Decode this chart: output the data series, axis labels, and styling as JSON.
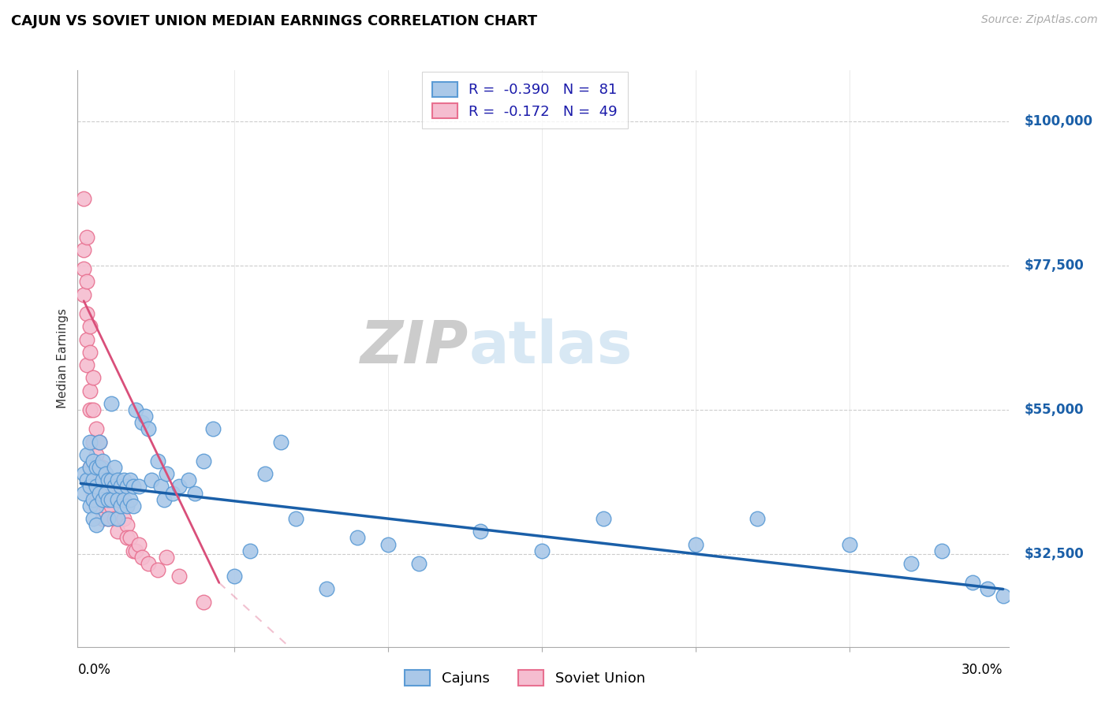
{
  "title": "CAJUN VS SOVIET UNION MEDIAN EARNINGS CORRELATION CHART",
  "source": "Source: ZipAtlas.com",
  "ylabel": "Median Earnings",
  "ytick_labels": [
    "$32,500",
    "$55,000",
    "$77,500",
    "$100,000"
  ],
  "ytick_values": [
    32500,
    55000,
    77500,
    100000
  ],
  "ymin": 18000,
  "ymax": 108000,
  "xmin": -0.001,
  "xmax": 0.302,
  "cajun_color": "#aac8e8",
  "cajun_edge_color": "#5b9bd5",
  "soviet_color": "#f5bdd0",
  "soviet_edge_color": "#e87090",
  "cajun_line_color": "#1a5fa8",
  "soviet_line_color": "#d94f7a",
  "watermark_color": "#d8e8f4",
  "legend_label_cajun": "R =  -0.390   N =  81",
  "legend_label_soviet": "R =  -0.172   N =  49",
  "bottom_legend_cajun": "Cajuns",
  "bottom_legend_soviet": "Soviet Union",
  "cajun_x": [
    0.001,
    0.001,
    0.002,
    0.002,
    0.003,
    0.003,
    0.003,
    0.003,
    0.004,
    0.004,
    0.004,
    0.004,
    0.005,
    0.005,
    0.005,
    0.005,
    0.006,
    0.006,
    0.006,
    0.007,
    0.007,
    0.007,
    0.008,
    0.008,
    0.009,
    0.009,
    0.009,
    0.01,
    0.01,
    0.01,
    0.011,
    0.011,
    0.012,
    0.012,
    0.012,
    0.013,
    0.013,
    0.014,
    0.014,
    0.015,
    0.015,
    0.016,
    0.016,
    0.017,
    0.017,
    0.018,
    0.019,
    0.02,
    0.021,
    0.022,
    0.023,
    0.025,
    0.026,
    0.027,
    0.028,
    0.03,
    0.032,
    0.035,
    0.037,
    0.04,
    0.043,
    0.05,
    0.055,
    0.06,
    0.065,
    0.07,
    0.08,
    0.09,
    0.1,
    0.11,
    0.13,
    0.15,
    0.17,
    0.2,
    0.22,
    0.25,
    0.27,
    0.28,
    0.29,
    0.295,
    0.3
  ],
  "cajun_y": [
    45000,
    42000,
    48000,
    44000,
    50000,
    46000,
    43000,
    40000,
    47000,
    44000,
    41000,
    38000,
    46000,
    43000,
    40000,
    37000,
    50000,
    46000,
    42000,
    47000,
    44000,
    41000,
    45000,
    42000,
    44000,
    41000,
    38000,
    56000,
    44000,
    41000,
    46000,
    43000,
    44000,
    41000,
    38000,
    43000,
    40000,
    44000,
    41000,
    43000,
    40000,
    44000,
    41000,
    43000,
    40000,
    55000,
    43000,
    53000,
    54000,
    52000,
    44000,
    47000,
    43000,
    41000,
    45000,
    42000,
    43000,
    44000,
    42000,
    47000,
    52000,
    29000,
    33000,
    45000,
    50000,
    38000,
    27000,
    35000,
    34000,
    31000,
    36000,
    33000,
    38000,
    34000,
    38000,
    34000,
    31000,
    33000,
    28000,
    27000,
    26000
  ],
  "soviet_x": [
    0.001,
    0.001,
    0.001,
    0.001,
    0.002,
    0.002,
    0.002,
    0.002,
    0.002,
    0.003,
    0.003,
    0.003,
    0.003,
    0.003,
    0.004,
    0.004,
    0.004,
    0.004,
    0.005,
    0.005,
    0.005,
    0.005,
    0.006,
    0.006,
    0.006,
    0.007,
    0.007,
    0.007,
    0.008,
    0.008,
    0.009,
    0.009,
    0.01,
    0.011,
    0.012,
    0.013,
    0.014,
    0.015,
    0.015,
    0.016,
    0.017,
    0.018,
    0.019,
    0.02,
    0.022,
    0.025,
    0.028,
    0.032,
    0.04
  ],
  "soviet_y": [
    88000,
    80000,
    77000,
    73000,
    82000,
    75000,
    70000,
    66000,
    62000,
    68000,
    64000,
    58000,
    55000,
    46000,
    60000,
    55000,
    50000,
    42000,
    52000,
    48000,
    44000,
    40000,
    50000,
    46000,
    42000,
    46000,
    42000,
    38000,
    44000,
    40000,
    42000,
    38000,
    40000,
    38000,
    36000,
    42000,
    38000,
    37000,
    35000,
    35000,
    33000,
    33000,
    34000,
    32000,
    31000,
    30000,
    32000,
    29000,
    25000
  ]
}
